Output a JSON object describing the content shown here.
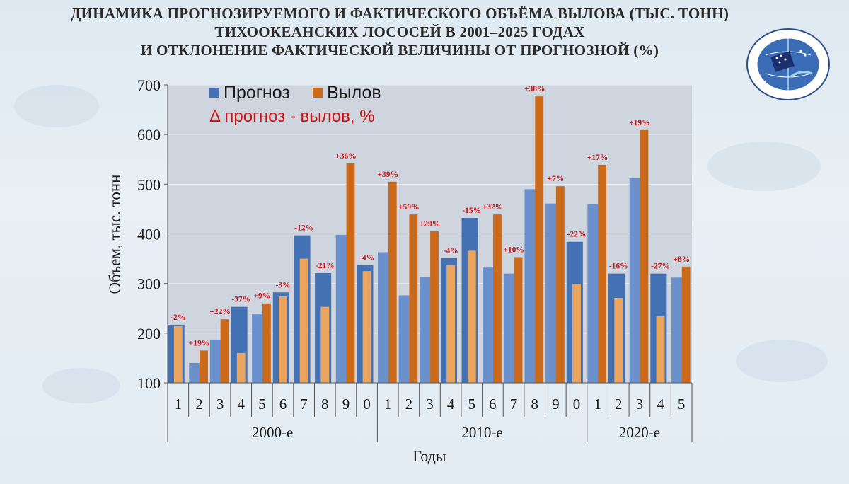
{
  "title": {
    "line1": "ДИНАМИКА ПРОГНОЗИРУЕМОГО И ФАКТИЧЕСКОГО ОБЪЁМА ВЫЛОВА (ТЫС. ТОНН)",
    "line2": "ТИХООКЕАНСКИХ ЛОСОСЕЙ В 2001–2025 ГОДАХ",
    "line3": "И ОТКЛОНЕНИЕ ФАКТИЧЕСКОЙ ВЕЛИЧИНЫ ОТ ПРОГНОЗНОЙ (%)"
  },
  "chart_data": {
    "type": "bar",
    "ylabel": "Объем, тыс. тонн",
    "xlabel": "Годы",
    "ylim": [
      100,
      700
    ],
    "yticks": [
      100,
      200,
      300,
      400,
      500,
      600,
      700
    ],
    "legend": {
      "forecast": "Прогноз",
      "catch": "Вылов",
      "delta": "Δ прогноз - вылов, %"
    },
    "colors": {
      "forecast_dark": "#4470b4",
      "forecast_light": "#6a91cc",
      "catch_dark": "#cc6a1c",
      "catch_light": "#eca55e",
      "delta_text": "#d01010"
    },
    "categories": [
      "1",
      "2",
      "3",
      "4",
      "5",
      "6",
      "7",
      "8",
      "9",
      "0",
      "1",
      "2",
      "3",
      "4",
      "5",
      "6",
      "7",
      "8",
      "9",
      "0",
      "1",
      "2",
      "3",
      "4",
      "5"
    ],
    "groups": [
      {
        "label": "2000-е",
        "count": 10
      },
      {
        "label": "2010-е",
        "count": 10
      },
      {
        "label": "2020-е",
        "count": 5
      }
    ],
    "series": [
      {
        "name": "Прогноз",
        "values": [
          217,
          140,
          187,
          253,
          238,
          282,
          397,
          321,
          398,
          337,
          363,
          276,
          313,
          351,
          432,
          332,
          320,
          490,
          461,
          384,
          460,
          320,
          512,
          320,
          312
        ]
      },
      {
        "name": "Вылов",
        "values": [
          214,
          165,
          228,
          160,
          260,
          274,
          350,
          253,
          542,
          325,
          505,
          439,
          405,
          337,
          366,
          439,
          353,
          677,
          496,
          299,
          539,
          271,
          609,
          234,
          334
        ]
      }
    ],
    "higher_series": [
      "forecast",
      "catch",
      "catch",
      "forecast",
      "catch",
      "forecast",
      "forecast",
      "forecast",
      "catch",
      "forecast",
      "catch",
      "catch",
      "catch",
      "forecast",
      "forecast",
      "catch",
      "catch",
      "catch",
      "catch",
      "forecast",
      "catch",
      "forecast",
      "catch",
      "forecast",
      "catch"
    ],
    "deltas": [
      "-2%",
      "+19%",
      "+22%",
      "-37%",
      "+9%",
      "-3%",
      "-12%",
      "-21%",
      "+36%",
      "-4%",
      "+39%",
      "+59%",
      "+29%",
      "-4%",
      "-15%",
      "+32%",
      "+10%",
      "+38%",
      "+7%",
      "-22%",
      "+17%",
      "-16%",
      "+19%",
      "-27%",
      "+8%"
    ]
  }
}
